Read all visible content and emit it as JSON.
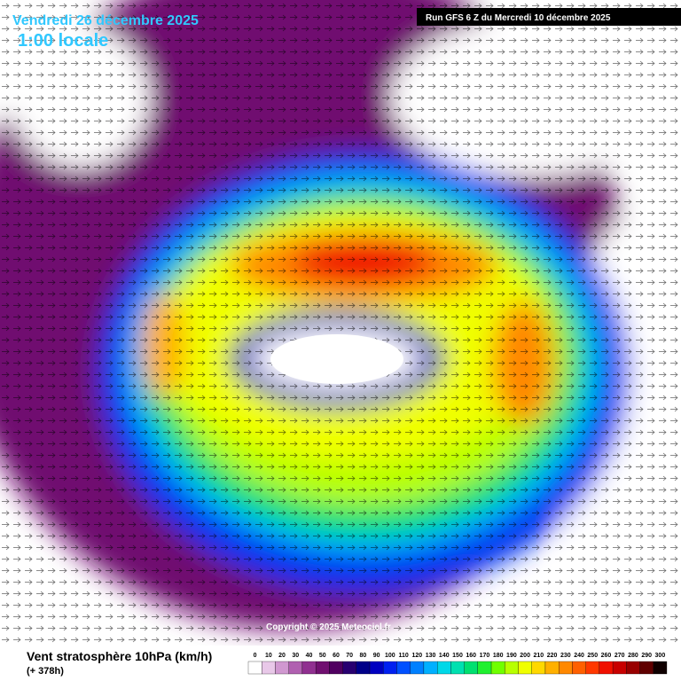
{
  "header": {
    "date": "Vendredi 26 décembre 2025",
    "time": "1:00 locale",
    "run": "Run GFS 6 Z du Mercredi 10 décembre 2025"
  },
  "copyright": "Copyright © 2025 Meteociel.fr",
  "footer": {
    "title": "Vent stratosphère 10hPa (km/h)",
    "lead": "(+ 378h)"
  },
  "legend": {
    "values": [
      0,
      10,
      20,
      30,
      40,
      50,
      60,
      70,
      80,
      90,
      100,
      110,
      120,
      130,
      140,
      150,
      160,
      170,
      180,
      190,
      200,
      210,
      220,
      230,
      240,
      250,
      260,
      270,
      280,
      290,
      300
    ],
    "colors": [
      "#ffffff",
      "#e8c8e8",
      "#d098d0",
      "#b060b0",
      "#903090",
      "#701070",
      "#500060",
      "#280070",
      "#000088",
      "#0000c0",
      "#0020f0",
      "#0050ff",
      "#0080ff",
      "#00b0ff",
      "#00d8e8",
      "#00e0b0",
      "#00e070",
      "#20f030",
      "#70ff00",
      "#b8ff00",
      "#f0ff00",
      "#ffd800",
      "#ffb000",
      "#ff8800",
      "#ff6000",
      "#ff3800",
      "#f01000",
      "#c80000",
      "#980000",
      "#600000",
      "#100000"
    ]
  }
}
